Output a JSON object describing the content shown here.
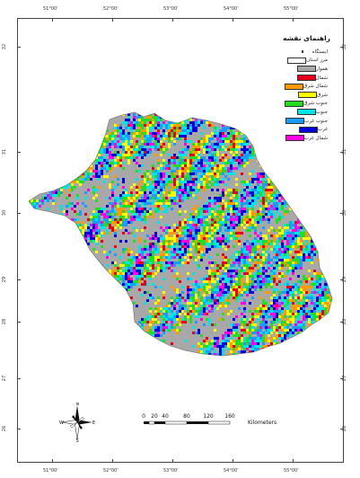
{
  "legend": {
    "title": "راهنمای نقشه",
    "items": [
      {
        "label": "ایستگاه",
        "type": "dot",
        "color": "#111111"
      },
      {
        "label": "مرز استان",
        "type": "box",
        "color": "#ffffff"
      },
      {
        "label": "هموار",
        "type": "box",
        "color": "#a8a8a8"
      },
      {
        "label": "شمال",
        "type": "box",
        "color": "#e6001a"
      },
      {
        "label": "شمال شرق",
        "type": "box",
        "color": "#ff9a00"
      },
      {
        "label": "شرق",
        "type": "box",
        "color": "#ffff00"
      },
      {
        "label": "جنوب شرق",
        "type": "box",
        "color": "#22dd22"
      },
      {
        "label": "جنوب",
        "type": "box",
        "color": "#00e6e6"
      },
      {
        "label": "جنوب غرب",
        "type": "box",
        "color": "#1a9cff"
      },
      {
        "label": "غرب",
        "type": "box",
        "color": "#0000d8"
      },
      {
        "label": "شمال غرب",
        "type": "box",
        "color": "#ff00e6"
      }
    ]
  },
  "grid": {
    "top": [
      "51°00'",
      "52°00'",
      "53°00'",
      "54°00'",
      "55°00'"
    ],
    "bottom": [
      "51°00'",
      "52°00'",
      "53°00'",
      "54°00'",
      "55°00'"
    ],
    "left": [
      "32",
      "31",
      "30",
      "29",
      "28",
      "27",
      "26"
    ],
    "right": [
      "32",
      "31",
      "30",
      "29",
      "28",
      "27",
      "26"
    ]
  },
  "scale": {
    "labels": [
      "0",
      "20",
      "40",
      "80",
      "120",
      "160"
    ],
    "units": "Kilometers"
  },
  "compass": {
    "n": "N",
    "s": "S",
    "e": "E",
    "w": "W"
  },
  "colors": {
    "flat": "#a8a8a8",
    "aspects": [
      "#e6001a",
      "#ff9a00",
      "#ffff00",
      "#22dd22",
      "#00e6e6",
      "#1a9cff",
      "#0000d8",
      "#ff00e6"
    ]
  }
}
